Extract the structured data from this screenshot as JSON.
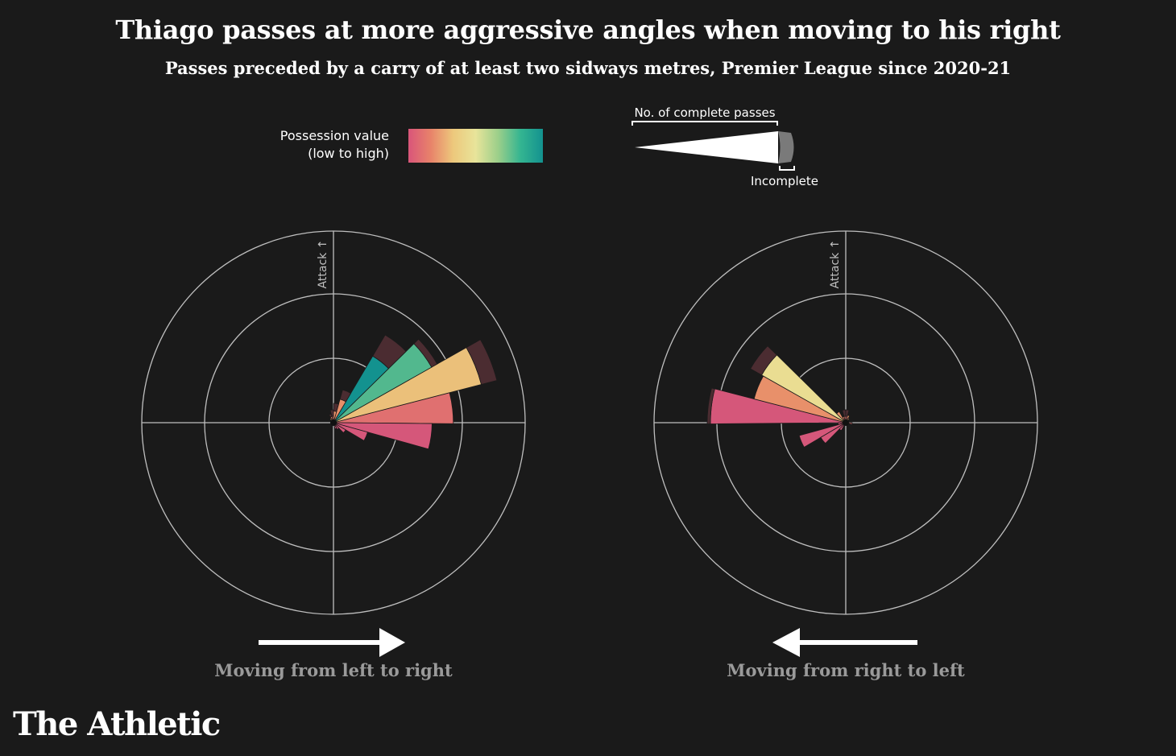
{
  "title": "Thiago passes at more aggressive angles when moving to his right",
  "subtitle": "Passes preceded by a carry of at least two sidways metres, Premier League since 2020-21",
  "legend": {
    "color_label_line1": "Possession value",
    "color_label_line2": "(low to high)",
    "gradient_colors": [
      "#d9557a",
      "#e8836a",
      "#edc87c",
      "#e8e49a",
      "#9ccf8a",
      "#34b591",
      "#13928f"
    ],
    "size_label": "No. of complete passes",
    "incomplete_label": "Incomplete"
  },
  "colors": {
    "background": "#1a1a1a",
    "grid": "#bfbfbf",
    "incomplete": "#4b2c31",
    "direction_label": "#9a9a9a"
  },
  "chart_data": [
    {
      "type": "polar-bar",
      "panel": "left",
      "direction_label": "Moving from left to right",
      "axis_label": "Attack ↑",
      "bin_width_deg": 15,
      "radial_rings": 3,
      "wedges": [
        {
          "angle_deg": 7,
          "complete": 1.86,
          "incomplete": 0.0,
          "color": "#e07070"
        },
        {
          "angle_deg": 22,
          "complete": 2.37,
          "incomplete": 0.25,
          "color": "#ebc07a"
        },
        {
          "angle_deg": 37,
          "complete": 1.75,
          "incomplete": 0.1,
          "color": "#52b88e"
        },
        {
          "angle_deg": 52,
          "complete": 1.2,
          "incomplete": 0.38,
          "color": "#13928f"
        },
        {
          "angle_deg": 67,
          "complete": 0.38,
          "incomplete": 0.15,
          "color": "#e8906a"
        },
        {
          "angle_deg": 82,
          "complete": 0.18,
          "incomplete": 0.12,
          "color": "#e8906a"
        },
        {
          "angle_deg": 97,
          "complete": 0.1,
          "incomplete": 0.1,
          "color": "#e07070"
        },
        {
          "angle_deg": 112,
          "complete": 0.1,
          "incomplete": 0.04,
          "color": "#e8906a"
        },
        {
          "angle_deg": 127,
          "complete": 0.08,
          "incomplete": 0.0,
          "color": "#e8906a"
        },
        {
          "angle_deg": -8,
          "complete": 1.53,
          "incomplete": 0.0,
          "color": "#d5577a"
        },
        {
          "angle_deg": -23,
          "complete": 0.55,
          "incomplete": 0.0,
          "color": "#d5577a"
        },
        {
          "angle_deg": -38,
          "complete": 0.22,
          "incomplete": 0.0,
          "color": "#d5577a"
        },
        {
          "angle_deg": -53,
          "complete": 0.12,
          "incomplete": 0.0,
          "color": "#d5577a"
        },
        {
          "angle_deg": -68,
          "complete": 0.1,
          "incomplete": 0.0,
          "color": "#d5577a"
        }
      ]
    },
    {
      "type": "polar-bar",
      "panel": "right",
      "direction_label": "Moving from right to left",
      "axis_label": "Attack ↑",
      "bin_width_deg": 15,
      "radial_rings": 3,
      "wedges": [
        {
          "angle_deg": 173,
          "complete": 2.1,
          "incomplete": 0.05,
          "color": "#d5577a"
        },
        {
          "angle_deg": 158,
          "complete": 1.47,
          "incomplete": 0.0,
          "color": "#e8906a"
        },
        {
          "angle_deg": 143,
          "complete": 1.5,
          "incomplete": 0.2,
          "color": "#eadd92"
        },
        {
          "angle_deg": 128,
          "complete": 0.2,
          "incomplete": 0.0,
          "color": "#e8906a"
        },
        {
          "angle_deg": 113,
          "complete": 0.1,
          "incomplete": 0.0,
          "color": "#e8906a"
        },
        {
          "angle_deg": 98,
          "complete": 0.1,
          "incomplete": 0.1,
          "color": "#e07070"
        },
        {
          "angle_deg": 83,
          "complete": 0.1,
          "incomplete": 0.1,
          "color": "#e07070"
        },
        {
          "angle_deg": 68,
          "complete": 0.12,
          "incomplete": 0.0,
          "color": "#e8906a"
        },
        {
          "angle_deg": 53,
          "complete": 0.08,
          "incomplete": 0.0,
          "color": "#e8906a"
        },
        {
          "angle_deg": 188,
          "complete": 0.12,
          "incomplete": 0.0,
          "color": "#d5577a"
        },
        {
          "angle_deg": 203,
          "complete": 0.75,
          "incomplete": 0.0,
          "color": "#d5577a"
        },
        {
          "angle_deg": 218,
          "complete": 0.45,
          "incomplete": 0.0,
          "color": "#d5577a"
        },
        {
          "angle_deg": 233,
          "complete": 0.14,
          "incomplete": 0.0,
          "color": "#d5577a"
        },
        {
          "angle_deg": -8,
          "complete": 0.1,
          "incomplete": 0.0,
          "color": "#e07070"
        }
      ]
    }
  ],
  "brand": "The Athletic"
}
